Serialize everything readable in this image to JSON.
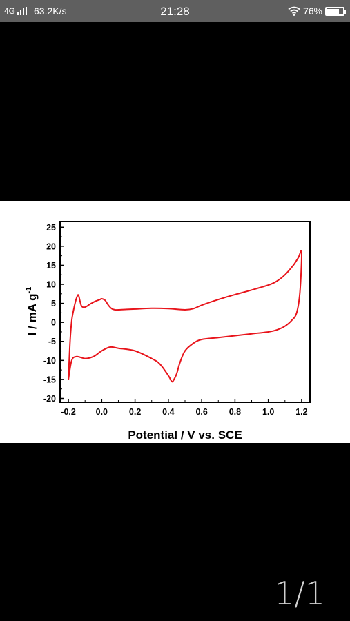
{
  "status_bar": {
    "network": "4G",
    "speed": "63.2K/s",
    "time": "21:28",
    "battery": "76%",
    "battery_level": 0.76,
    "icons": [
      "signal-icon",
      "wifi-icon",
      "battery-icon"
    ]
  },
  "viewer": {
    "page_indicator": "1/1"
  },
  "chart_data": {
    "type": "line",
    "title": "",
    "xlabel": "Potential / V vs. SCE",
    "ylabel_main": "I / mA g",
    "ylabel_sup": "-1",
    "xlim": [
      -0.25,
      1.25
    ],
    "ylim": [
      -21,
      26.5
    ],
    "xticks": [
      -0.2,
      0.0,
      0.2,
      0.4,
      0.6,
      0.8,
      1.0,
      1.2
    ],
    "xtick_labels": [
      "-0.2",
      "0.0",
      "0.2",
      "0.4",
      "0.6",
      "0.8",
      "1.0",
      "1.2"
    ],
    "yticks": [
      -20,
      -15,
      -10,
      -5,
      0,
      5,
      10,
      15,
      20,
      25
    ],
    "ytick_labels": [
      "-20",
      "-15",
      "-10",
      "-5",
      "0",
      "5",
      "10",
      "15",
      "20",
      "25"
    ],
    "grid": false,
    "legend": "none",
    "series": [
      {
        "color": "#e8141b",
        "x": [
          -0.2,
          -0.19,
          -0.18,
          -0.17,
          -0.16,
          -0.15,
          -0.14,
          -0.13,
          -0.12,
          -0.1,
          -0.07,
          -0.04,
          -0.01,
          0.0,
          0.02,
          0.04,
          0.06,
          0.08,
          0.1,
          0.15,
          0.2,
          0.3,
          0.4,
          0.5,
          0.55,
          0.6,
          0.7,
          0.8,
          0.9,
          1.0,
          1.05,
          1.1,
          1.15,
          1.18,
          1.2,
          1.19,
          1.17,
          1.14,
          1.1,
          1.05,
          1.0,
          0.9,
          0.8,
          0.7,
          0.6,
          0.55,
          0.5,
          0.47,
          0.45,
          0.43,
          0.42,
          0.4,
          0.35,
          0.3,
          0.2,
          0.1,
          0.05,
          0.0,
          -0.05,
          -0.1,
          -0.15,
          -0.18,
          -0.2
        ],
        "y": [
          -15.0,
          -5.0,
          0.5,
          3.0,
          5.0,
          6.5,
          7.2,
          5.5,
          4.2,
          4.0,
          4.8,
          5.5,
          6.0,
          6.2,
          5.8,
          4.5,
          3.6,
          3.3,
          3.3,
          3.4,
          3.5,
          3.7,
          3.6,
          3.3,
          3.6,
          4.5,
          6.0,
          7.3,
          8.5,
          9.8,
          10.8,
          12.5,
          15.0,
          17.0,
          18.3,
          8.0,
          2.5,
          0.5,
          -1.0,
          -2.0,
          -2.5,
          -3.0,
          -3.5,
          -4.0,
          -4.5,
          -5.5,
          -7.5,
          -10.5,
          -13.5,
          -15.3,
          -15.5,
          -14.0,
          -11.0,
          -9.5,
          -7.5,
          -6.8,
          -6.5,
          -7.5,
          -9.0,
          -9.5,
          -9.0,
          -10.0,
          -15.0
        ]
      }
    ]
  }
}
